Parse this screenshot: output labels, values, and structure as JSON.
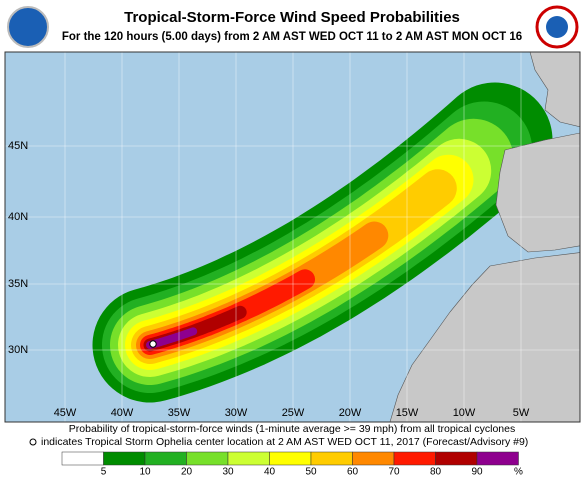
{
  "header": {
    "title": "Tropical-Storm-Force Wind Speed Probabilities",
    "subtitle": "For the 120 hours (5.00 days) from 2 AM AST WED OCT 11 to 2 AM AST MON OCT 16"
  },
  "map": {
    "longitude_labels": [
      "45W",
      "40W",
      "35W",
      "30W",
      "25W",
      "20W",
      "15W",
      "10W",
      "5W"
    ],
    "latitude_labels": [
      "45N",
      "40N",
      "35N",
      "30N"
    ]
  },
  "footer": {
    "line1": "Probability of tropical-storm-force winds (1-minute average >= 39 mph) from all tropical cyclones",
    "line2": "indicates Tropical Storm Ophelia center location at 2 AM AST WED OCT 11, 2017 (Forecast/Advisory #9)"
  },
  "legend": {
    "colors": [
      "#ffffff",
      "#008c00",
      "#22b022",
      "#77e02a",
      "#ccff33",
      "#ffff00",
      "#ffcc00",
      "#ff8800",
      "#ff1a00",
      "#b00000",
      "#8e008e"
    ],
    "labels": [
      5,
      10,
      20,
      30,
      40,
      50,
      60,
      70,
      80,
      90,
      "%"
    ]
  }
}
